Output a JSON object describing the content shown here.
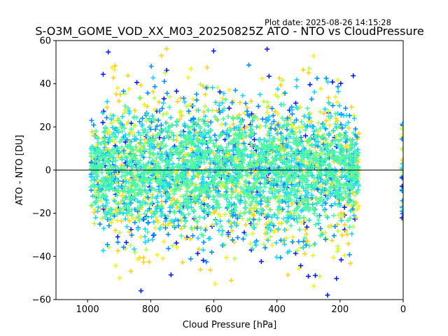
{
  "chart_data": {
    "type": "scatter",
    "title": "S-O3M_GOME_VOD_XX_M03_20250825Z ATO - NTO vs CloudPressure",
    "plot_date": "Plot date: 2025-08-26 14:15:28",
    "xlabel": "Cloud Pressure [hPa]",
    "ylabel": "ATO - NTO [DU]",
    "xlim": [
      1100,
      0
    ],
    "ylim": [
      -60,
      60
    ],
    "x_inverted": true,
    "x_ticks": [
      1000,
      800,
      600,
      400,
      200,
      0
    ],
    "y_ticks": [
      -60,
      -40,
      -20,
      0,
      20,
      40,
      60
    ],
    "reference_line": {
      "y": 0,
      "color": "#000000"
    },
    "marker": "+",
    "grid": false,
    "colormap": "jet (color by density/latitude class)",
    "colors": [
      "#0a1cff",
      "#0090ff",
      "#17d6ff",
      "#4cf7a5",
      "#b7ff4a",
      "#f5f018",
      "#ffd21a"
    ],
    "point_cloud": {
      "x_range_bulk": [
        140,
        990
      ],
      "y_range_bulk": [
        -40,
        45
      ],
      "center_y": 0,
      "typical_spread_y": 15,
      "outliers_y_range": [
        -58,
        59
      ],
      "edge_cluster_x": 0,
      "edge_cluster_y_range": [
        -26,
        22
      ]
    }
  }
}
